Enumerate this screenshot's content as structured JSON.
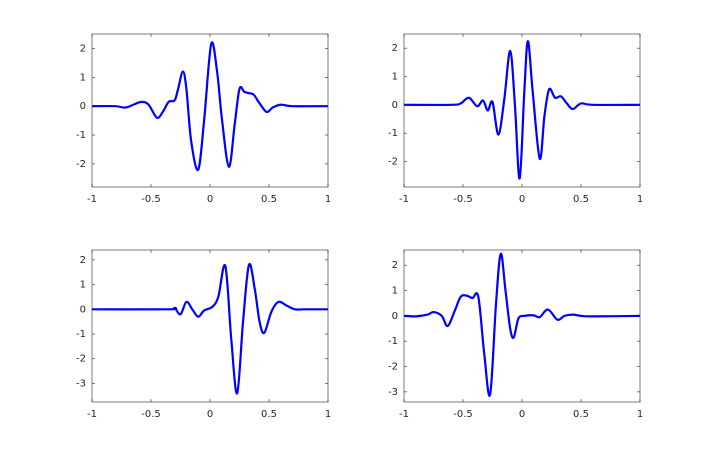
{
  "chart_data": [
    {
      "type": "line",
      "color": "#0000ff",
      "x": [
        -1,
        -0.8,
        -0.72,
        -0.65,
        -0.58,
        -0.52,
        -0.45,
        -0.4,
        -0.35,
        -0.3,
        -0.27,
        -0.23,
        -0.2,
        -0.16,
        -0.1,
        -0.05,
        0.01,
        0.06,
        0.1,
        0.16,
        0.21,
        0.25,
        0.29,
        0.33,
        0.37,
        0.42,
        0.48,
        0.53,
        0.6,
        0.7,
        1
      ],
      "values": [
        0,
        0,
        -0.05,
        0.05,
        0.15,
        0.05,
        -0.4,
        -0.2,
        0.15,
        0.2,
        0.6,
        1.2,
        0.6,
        -1.2,
        -2.2,
        -0.5,
        2.15,
        1.2,
        -0.4,
        -2.1,
        -0.6,
        0.6,
        0.5,
        0.45,
        0.4,
        0.1,
        -0.2,
        -0.05,
        0.05,
        0,
        0
      ],
      "xlim": [
        -1,
        1
      ],
      "xticks": [
        -1,
        -0.5,
        0,
        0.5,
        1
      ],
      "ylim": [
        -2.8,
        2.5
      ],
      "yticks": [
        -2,
        -1,
        0,
        1,
        2
      ]
    },
    {
      "type": "line",
      "color": "#0000ff",
      "x": [
        -1,
        -0.6,
        -0.52,
        -0.45,
        -0.38,
        -0.33,
        -0.29,
        -0.25,
        -0.2,
        -0.15,
        -0.1,
        -0.06,
        -0.02,
        0.02,
        0.05,
        0.09,
        0.15,
        0.19,
        0.23,
        0.28,
        0.33,
        0.38,
        0.43,
        0.5,
        0.6,
        1
      ],
      "values": [
        0,
        0,
        0.05,
        0.25,
        -0.05,
        0.15,
        -0.2,
        0.1,
        -1.05,
        0.2,
        1.9,
        0,
        -2.6,
        0.5,
        2.25,
        0.5,
        -1.9,
        -0.4,
        0.55,
        0.25,
        0.3,
        0.05,
        -0.15,
        0.05,
        0,
        0
      ],
      "xlim": [
        -1,
        1
      ],
      "xticks": [
        -1,
        -0.5,
        0,
        0.5,
        1
      ],
      "ylim": [
        -2.9,
        2.5
      ],
      "yticks": [
        -2,
        -1,
        0,
        1,
        2
      ]
    },
    {
      "type": "line",
      "color": "#0000ff",
      "x": [
        -1,
        -0.35,
        -0.3,
        -0.25,
        -0.2,
        -0.15,
        -0.1,
        -0.05,
        0.02,
        0.07,
        0.13,
        0.18,
        0.23,
        0.28,
        0.33,
        0.38,
        0.42,
        0.46,
        0.52,
        0.58,
        0.65,
        0.72,
        0.8,
        1
      ],
      "values": [
        0,
        0,
        0.05,
        -0.2,
        0.3,
        0,
        -0.3,
        -0.05,
        0.1,
        0.5,
        1.75,
        -1.2,
        -3.4,
        -0.5,
        1.8,
        0.8,
        -0.5,
        -0.95,
        -0.1,
        0.3,
        0.15,
        0,
        0,
        0
      ],
      "xlim": [
        -1,
        1
      ],
      "xticks": [
        -1,
        -0.5,
        0,
        0.5,
        1
      ],
      "ylim": [
        -3.75,
        2.4
      ],
      "yticks": [
        -3,
        -2,
        -1,
        0,
        1,
        2
      ]
    },
    {
      "type": "line",
      "color": "#0000ff",
      "x": [
        -1,
        -0.9,
        -0.8,
        -0.75,
        -0.68,
        -0.63,
        -0.57,
        -0.52,
        -0.47,
        -0.42,
        -0.37,
        -0.32,
        -0.27,
        -0.22,
        -0.18,
        -0.14,
        -0.1,
        -0.07,
        -0.03,
        0.02,
        0.1,
        0.15,
        0.22,
        0.3,
        0.36,
        0.43,
        0.5,
        0.6,
        1
      ],
      "values": [
        0,
        -0.02,
        0.05,
        0.15,
        0,
        -0.4,
        0.2,
        0.75,
        0.8,
        0.7,
        0.75,
        -1.5,
        -3.1,
        0.5,
        2.45,
        1,
        -0.5,
        -0.85,
        -0.1,
        0,
        0.02,
        -0.05,
        0.25,
        -0.15,
        0,
        0.05,
        0,
        -0.02,
        0
      ],
      "xlim": [
        -1,
        1
      ],
      "xticks": [
        -1,
        -0.5,
        0,
        0.5,
        1
      ],
      "ylim": [
        -3.4,
        2.6
      ],
      "yticks": [
        -3,
        -2,
        -1,
        0,
        1,
        2
      ]
    }
  ]
}
